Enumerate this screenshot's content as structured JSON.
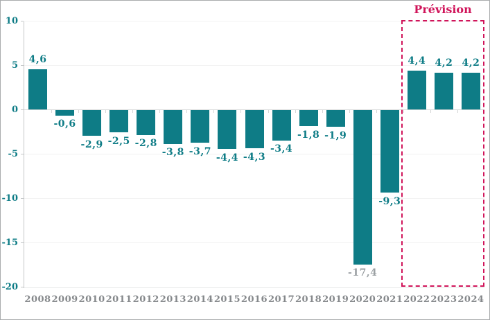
{
  "chart_data": {
    "type": "bar",
    "title": "",
    "xlabel": "",
    "ylabel": "",
    "categories": [
      "2008",
      "2009",
      "2010",
      "2011",
      "2012",
      "2013",
      "2014",
      "2015",
      "2016",
      "2017",
      "2018",
      "2019",
      "2020",
      "2021",
      "2022",
      "2023",
      "2024"
    ],
    "values": [
      4.6,
      -0.6,
      -2.9,
      -2.5,
      -2.8,
      -3.8,
      -3.7,
      -4.4,
      -4.3,
      -3.4,
      -1.8,
      -1.9,
      -17.4,
      -9.3,
      4.4,
      4.2,
      4.2
    ],
    "value_labels": [
      "4,6",
      "-0,6",
      "-2,9",
      "-2,5",
      "-2,8",
      "-3,8",
      "-3,7",
      "-4,4",
      "-4,3",
      "-3,4",
      "-1,8",
      "-1,9",
      "-17,4",
      "-9,3",
      "4,4",
      "4,2",
      "4,2"
    ],
    "ylim": [
      -20,
      10
    ],
    "yticks": [
      10,
      5,
      0,
      -5,
      -10,
      -15,
      -20
    ],
    "ytick_labels": [
      "10",
      "5",
      "0",
      "-5",
      "-10",
      "-15",
      "-20"
    ],
    "gridline_values": [
      10,
      5,
      -5,
      -10,
      -15
    ],
    "grid": "horizontal-faint",
    "legend": "none",
    "annotation": {
      "label": "Prévision",
      "categories": [
        "2022",
        "2023",
        "2024"
      ],
      "start_index": 14
    },
    "colors": {
      "bar": "#0e7c86",
      "value_label": "#0e7c86",
      "muted_value_label": "#9ba0a3",
      "axis_tick_label": "#0e7c86",
      "x_tick_label": "#85888b",
      "annotation": "#d0145a",
      "gridline": "#f2f2f2",
      "zero_line": "#d4d6d6",
      "spine": "#c3c6c7"
    },
    "muted_label_index": 12
  }
}
